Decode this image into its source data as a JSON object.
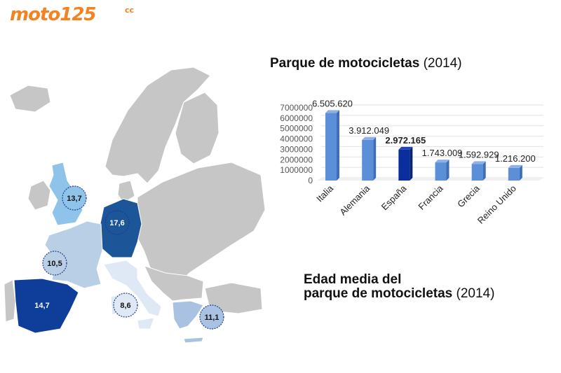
{
  "brand": {
    "logo_text": "moto125",
    "logo_suffix": "cc",
    "color": "#f58220"
  },
  "titles": {
    "park_title_bold": "Parque de motocicletas",
    "park_title_year": "(2014",
    "park_title_close": ")",
    "age_title_line1": "Edad media del",
    "age_title_line2": "parque de motocicletas",
    "age_title_year": "(2014)"
  },
  "map_badges": [
    {
      "country": "Reino Unido",
      "value": "13,7",
      "fill": "#8fc3ea"
    },
    {
      "country": "Alemania",
      "value": "17,6",
      "fill": "#1d5599"
    },
    {
      "country": "Francia",
      "value": "10,5",
      "fill": "#b8cfe6"
    },
    {
      "country": "España",
      "value": "14,7",
      "fill": "#0f3d9a"
    },
    {
      "country": "Italia",
      "value": "8,6",
      "fill": "#dfe8f5"
    },
    {
      "country": "Grecia",
      "value": "11,1",
      "fill": "#a9c2e2"
    }
  ],
  "colors": {
    "bar": "#5b8fd8",
    "bar_highlight": "#0b2e9e",
    "land": "#c6c6c6",
    "sea": "#ffffff"
  },
  "chart_data": {
    "type": "bar",
    "categories": [
      "Italia",
      "Alemania",
      "España",
      "Francia",
      "Grecia",
      "Reino Unido"
    ],
    "values": [
      6505620,
      3912049,
      2972165,
      1743009,
      1592929,
      1216200
    ],
    "value_labels": [
      "6.505.620",
      "3.912.049",
      "2.972.165",
      "1.743.009",
      "1.592.929",
      "1.216.200"
    ],
    "highlight": "España",
    "y_ticks": [
      "0",
      "1000000",
      "2000000",
      "3000000",
      "4000000",
      "5000000",
      "6000000",
      "7000000"
    ],
    "ylim": [
      0,
      7000000
    ],
    "title": "Parque de motocicletas (2014)",
    "xlabel": "",
    "ylabel": "",
    "grid": true
  }
}
